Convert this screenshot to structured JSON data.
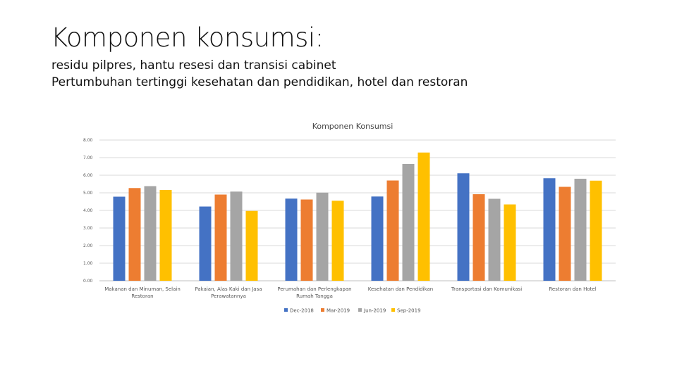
{
  "slide": {
    "title": "Komponen konsumsi:",
    "subtitle_1": "residu pilpres, hantu resesi  dan transisi cabinet",
    "subtitle_2": "Pertumbuhan tertinggi kesehatan dan pendidikan, hotel dan restoran"
  },
  "chart_data": {
    "type": "bar",
    "title": "Komponen Konsumsi",
    "categories": [
      "Makanan dan Minuman, Selain Restoran",
      "Pakaian, Alas Kaki dan Jasa Perawatannya",
      "Perumahan dan Perlengkapan Rumah Tangga",
      "Kesehatan dan Pendidikan",
      "Transportasi dan Komunikasi",
      "Restoran dan Hotel"
    ],
    "series": [
      {
        "name": "Dec-2018",
        "color": "#4472C4",
        "values": [
          4.78,
          4.22,
          4.67,
          4.79,
          6.11,
          5.83
        ]
      },
      {
        "name": "Mar-2019",
        "color": "#ED7D31",
        "values": [
          5.27,
          4.9,
          4.62,
          5.7,
          4.92,
          5.34
        ]
      },
      {
        "name": "Jun-2019",
        "color": "#A5A5A5",
        "values": [
          5.38,
          5.07,
          5.01,
          6.64,
          4.66,
          5.8
        ]
      },
      {
        "name": "Sep-2019",
        "color": "#FFC000",
        "values": [
          5.16,
          3.97,
          4.55,
          7.29,
          4.34,
          5.69
        ]
      }
    ],
    "ylim": [
      0,
      8
    ],
    "yticks": [
      "0.00",
      "1.00",
      "2.00",
      "3.00",
      "4.00",
      "5.00",
      "6.00",
      "7.00",
      "8.00"
    ],
    "xlabel": "",
    "ylabel": "",
    "grid": true,
    "legend_position": "bottom"
  }
}
